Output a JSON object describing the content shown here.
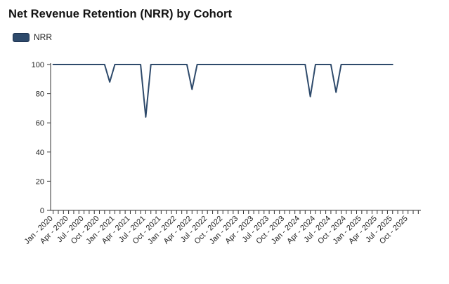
{
  "chart_title": "Net Revenue Retention (NRR) by Cohort",
  "chart_data": {
    "type": "line",
    "title": "Net Revenue Retention (NRR) by Cohort",
    "xlabel": "",
    "ylabel": "",
    "ylim": [
      0,
      100
    ],
    "yticks": [
      0,
      20,
      40,
      60,
      80,
      100
    ],
    "legend_position": "top-left",
    "grid": false,
    "series": [
      {
        "name": "NRR",
        "color": "#2e4a6b",
        "x": [
          "2020-01",
          "2020-02",
          "2020-03",
          "2020-04",
          "2020-05",
          "2020-06",
          "2020-07",
          "2020-08",
          "2020-09",
          "2020-10",
          "2020-11",
          "2020-12",
          "2021-01",
          "2021-02",
          "2021-03",
          "2021-04",
          "2021-05",
          "2021-06",
          "2021-07",
          "2021-08",
          "2021-09",
          "2021-10",
          "2021-11",
          "2021-12",
          "2022-01",
          "2022-02",
          "2022-03",
          "2022-04",
          "2022-05",
          "2022-06",
          "2022-07",
          "2022-08",
          "2022-09",
          "2022-10",
          "2022-11",
          "2022-12",
          "2023-01",
          "2023-02",
          "2023-03",
          "2023-04",
          "2023-05",
          "2023-06",
          "2023-07",
          "2023-08",
          "2023-09",
          "2023-10",
          "2023-11",
          "2023-12",
          "2024-01",
          "2024-02",
          "2024-03",
          "2024-04",
          "2024-05",
          "2024-06",
          "2024-07",
          "2024-08",
          "2024-09",
          "2024-10",
          "2024-11",
          "2024-12",
          "2025-01",
          "2025-02",
          "2025-03",
          "2025-04",
          "2025-05",
          "2025-06",
          "2025-07"
        ],
        "values": [
          100,
          100,
          100,
          100,
          100,
          100,
          100,
          100,
          100,
          100,
          100,
          88,
          100,
          100,
          100,
          100,
          100,
          100,
          64,
          100,
          100,
          100,
          100,
          100,
          100,
          100,
          100,
          83,
          100,
          100,
          100,
          100,
          100,
          100,
          100,
          100,
          100,
          100,
          100,
          100,
          100,
          100,
          100,
          100,
          100,
          100,
          100,
          100,
          100,
          100,
          78,
          100,
          100,
          100,
          100,
          81,
          100,
          100,
          100,
          100,
          100,
          100,
          100,
          100,
          100,
          100,
          100
        ]
      }
    ],
    "x_tick_labels": [
      "Jan - 2020",
      "Apr - 2020",
      "Jul - 2020",
      "Oct - 2020",
      "Jan - 2021",
      "Apr - 2021",
      "Jul - 2021",
      "Oct - 2021",
      "Jan - 2022",
      "Apr - 2022",
      "Jul - 2022",
      "Oct - 2022",
      "Jan - 2023",
      "Apr - 2023",
      "Jul - 2023",
      "Oct - 2023",
      "Jan - 2024",
      "Apr - 2024",
      "Jul - 2024",
      "Oct - 2024",
      "Jan - 2025",
      "Apr - 2025",
      "Jul - 2025",
      "Oct - 2025"
    ],
    "x_range": [
      "2020-01",
      "2025-12"
    ]
  }
}
